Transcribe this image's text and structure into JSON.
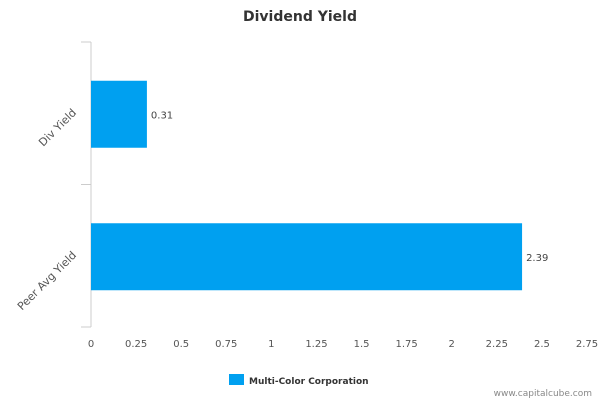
{
  "chart_data": {
    "type": "bar",
    "orientation": "horizontal",
    "title": "Dividend Yield",
    "categories": [
      "Div Yield",
      "Peer Avg Yield"
    ],
    "series": [
      {
        "name": "Multi-Color Corporation",
        "values": [
          0.31,
          2.39
        ],
        "color": "#00a0f0"
      }
    ],
    "data_labels": [
      "0.31",
      "2.39"
    ],
    "xlim": [
      0,
      2.75
    ],
    "x_ticks": [
      0,
      0.25,
      0.5,
      0.75,
      1,
      1.25,
      1.5,
      1.75,
      2,
      2.25,
      2.5,
      2.75
    ],
    "x_tick_labels": [
      "0",
      "0.25",
      "0.5",
      "0.75",
      "1",
      "1.25",
      "1.5",
      "1.75",
      "2",
      "2.25",
      "2.5",
      "2.75"
    ],
    "grid": false,
    "legend_position": "bottom"
  },
  "watermark": "www.capitalcube.com",
  "colors": {
    "bar": "#00a0f0",
    "axis": "#cccccc"
  }
}
